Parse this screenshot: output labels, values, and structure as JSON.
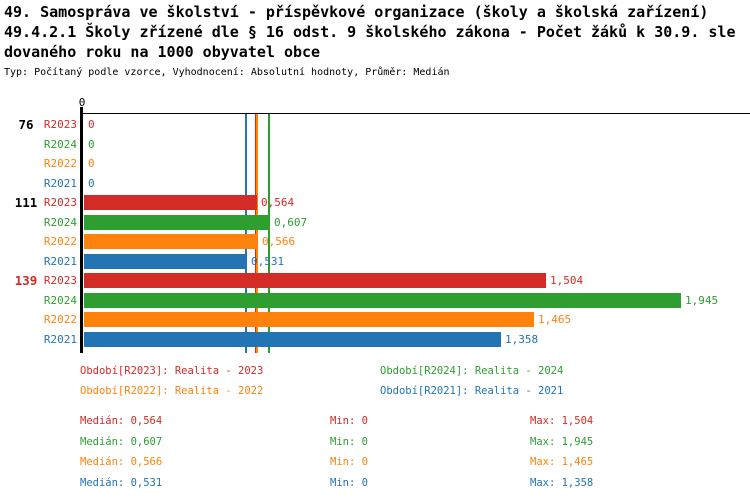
{
  "header": {
    "title_line1": "49. Samospráva ve školství - příspěvkové organizace (školy a školská zařízení)",
    "title_line2": "49.4.2.1 Školy zřízené dle § 16 odst. 9 školského zákona - Počet žáků k 30.9. sle",
    "title_line3": "dovaného roku na 1000 obyvatel obce",
    "meta": "Typ: Počítaný podle vzorce, Vyhodnocení: Absolutní hodnoty, Průměr: Medián"
  },
  "colors": {
    "R2023": "#d32b26",
    "R2024": "#2d9e2f",
    "R2022": "#ff820d",
    "R2021": "#2274b4",
    "axis": "#000000",
    "group_label_default": "#000000",
    "group_label_highlight": "#d32b26"
  },
  "chart_data": {
    "type": "bar",
    "orientation": "horizontal",
    "title": "49.4.2.1 Školy zřízené dle § 16 odst. 9 školského zákona - Počet žáků k 30.9. sledovaného roku na 1000 obyvatel obce",
    "axis_tick_label": "0",
    "xlim": [
      0,
      2.17
    ],
    "grid": false,
    "series_order": [
      "R2023",
      "R2024",
      "R2022",
      "R2021"
    ],
    "groups": [
      {
        "label": "76",
        "label_color": "#000000",
        "bars": [
          {
            "series": "R2023",
            "value": 0,
            "display": "0"
          },
          {
            "series": "R2024",
            "value": 0,
            "display": "0"
          },
          {
            "series": "R2022",
            "value": 0,
            "display": "0"
          },
          {
            "series": "R2021",
            "value": 0,
            "display": "0"
          }
        ]
      },
      {
        "label": "111",
        "label_color": "#000000",
        "bars": [
          {
            "series": "R2023",
            "value": 0.564,
            "display": "0,564"
          },
          {
            "series": "R2024",
            "value": 0.607,
            "display": "0,607"
          },
          {
            "series": "R2022",
            "value": 0.566,
            "display": "0,566"
          },
          {
            "series": "R2021",
            "value": 0.531,
            "display": "0,531"
          }
        ]
      },
      {
        "label": "139",
        "label_color": "#d32b26",
        "bars": [
          {
            "series": "R2023",
            "value": 1.504,
            "display": "1,504"
          },
          {
            "series": "R2024",
            "value": 1.945,
            "display": "1,945"
          },
          {
            "series": "R2022",
            "value": 1.465,
            "display": "1,465"
          },
          {
            "series": "R2021",
            "value": 1.358,
            "display": "1,358"
          }
        ]
      }
    ],
    "median_lines": [
      {
        "series": "R2021",
        "value": 0.531
      },
      {
        "series": "R2023",
        "value": 0.564
      },
      {
        "series": "R2022",
        "value": 0.566
      },
      {
        "series": "R2024",
        "value": 0.607
      }
    ]
  },
  "legend": {
    "items": [
      {
        "series": "R2023",
        "label": "Období[R2023]: Realita - 2023"
      },
      {
        "series": "R2024",
        "label": "Období[R2024]: Realita - 2024"
      },
      {
        "series": "R2022",
        "label": "Období[R2022]: Realita - 2022"
      },
      {
        "series": "R2021",
        "label": "Období[R2021]: Realita - 2021"
      }
    ]
  },
  "stats": {
    "labels": {
      "median": "Medián:",
      "min": "Min:",
      "max": "Max:"
    },
    "rows": [
      {
        "series": "R2023",
        "median": "0,564",
        "min": "0",
        "max": "1,504"
      },
      {
        "series": "R2024",
        "median": "0,607",
        "min": "0",
        "max": "1,945"
      },
      {
        "series": "R2022",
        "median": "0,566",
        "min": "0",
        "max": "1,465"
      },
      {
        "series": "R2021",
        "median": "0,531",
        "min": "0",
        "max": "1,358"
      }
    ]
  }
}
